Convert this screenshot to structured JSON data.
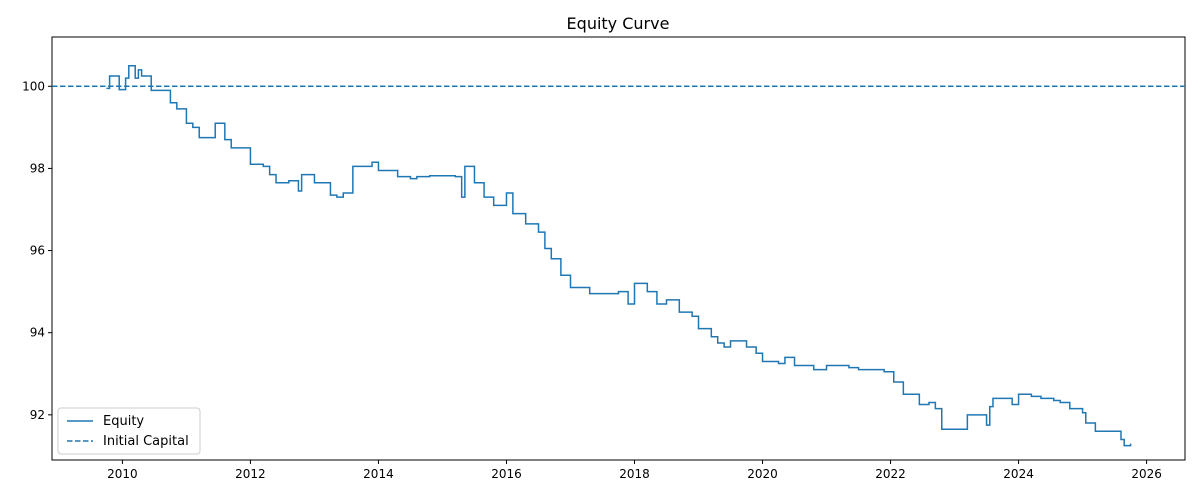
{
  "chart_data": {
    "type": "line",
    "title": "Equity Curve",
    "xlabel": "",
    "ylabel": "",
    "xlim": [
      2008.9,
      2026.6
    ],
    "ylim": [
      90.9,
      101.2
    ],
    "x_ticks": [
      2010,
      2012,
      2014,
      2016,
      2018,
      2020,
      2022,
      2024,
      2026
    ],
    "x_tick_labels": [
      "2010",
      "2012",
      "2014",
      "2016",
      "2018",
      "2020",
      "2022",
      "2024",
      "2026"
    ],
    "y_ticks": [
      92,
      94,
      96,
      98,
      100
    ],
    "y_tick_labels": [
      "92",
      "94",
      "96",
      "98",
      "100"
    ],
    "grid": false,
    "legend_position": "lower-left",
    "series": [
      {
        "name": "Equity",
        "color": "#1f77b4",
        "style": "step",
        "x": [
          2009.75,
          2009.8,
          2009.95,
          2010.05,
          2010.1,
          2010.2,
          2010.25,
          2010.3,
          2010.45,
          2010.5,
          2010.75,
          2010.85,
          2011.0,
          2011.1,
          2011.2,
          2011.45,
          2011.6,
          2011.7,
          2012.0,
          2012.2,
          2012.3,
          2012.4,
          2012.6,
          2012.75,
          2012.8,
          2013.0,
          2013.25,
          2013.35,
          2013.45,
          2013.6,
          2013.9,
          2014.0,
          2014.3,
          2014.5,
          2014.6,
          2014.8,
          2015.2,
          2015.3,
          2015.35,
          2015.5,
          2015.65,
          2015.8,
          2016.0,
          2016.1,
          2016.3,
          2016.5,
          2016.6,
          2016.7,
          2016.85,
          2017.0,
          2017.3,
          2017.6,
          2017.75,
          2017.9,
          2018.0,
          2018.2,
          2018.35,
          2018.5,
          2018.7,
          2018.9,
          2019.0,
          2019.2,
          2019.3,
          2019.4,
          2019.5,
          2019.75,
          2019.9,
          2020.0,
          2020.25,
          2020.35,
          2020.5,
          2020.8,
          2021.0,
          2021.35,
          2021.5,
          2021.75,
          2021.9,
          2022.05,
          2022.2,
          2022.45,
          2022.6,
          2022.7,
          2022.8,
          2023.0,
          2023.2,
          2023.5,
          2023.55,
          2023.6,
          2023.9,
          2024.0,
          2024.2,
          2024.35,
          2024.55,
          2024.65,
          2024.8,
          2025.0,
          2025.05,
          2025.2,
          2025.3,
          2025.6,
          2025.65,
          2025.75
        ],
        "y": [
          99.95,
          100.25,
          99.92,
          100.2,
          100.5,
          100.2,
          100.4,
          100.25,
          99.9,
          99.9,
          99.6,
          99.45,
          99.1,
          99.0,
          98.75,
          99.1,
          98.7,
          98.5,
          98.1,
          98.05,
          97.85,
          97.65,
          97.7,
          97.45,
          97.85,
          97.65,
          97.35,
          97.3,
          97.4,
          98.05,
          98.15,
          97.95,
          97.8,
          97.75,
          97.8,
          97.82,
          97.8,
          97.3,
          98.05,
          97.65,
          97.3,
          97.1,
          97.4,
          96.9,
          96.65,
          96.45,
          96.05,
          95.8,
          95.4,
          95.1,
          94.95,
          94.95,
          95.0,
          94.7,
          95.2,
          95.0,
          94.7,
          94.8,
          94.5,
          94.4,
          94.1,
          93.9,
          93.75,
          93.65,
          93.8,
          93.65,
          93.5,
          93.3,
          93.25,
          93.4,
          93.2,
          93.1,
          93.2,
          93.15,
          93.1,
          93.1,
          93.05,
          92.8,
          92.5,
          92.25,
          92.3,
          92.15,
          91.65,
          91.65,
          92.0,
          91.75,
          92.2,
          92.4,
          92.25,
          92.5,
          92.45,
          92.4,
          92.35,
          92.3,
          92.15,
          92.05,
          91.8,
          91.6,
          91.6,
          91.4,
          91.25,
          91.3
        ]
      },
      {
        "name": "Initial Capital",
        "color": "#1f77b4",
        "style": "dashed-hline",
        "y": 100
      }
    ]
  }
}
